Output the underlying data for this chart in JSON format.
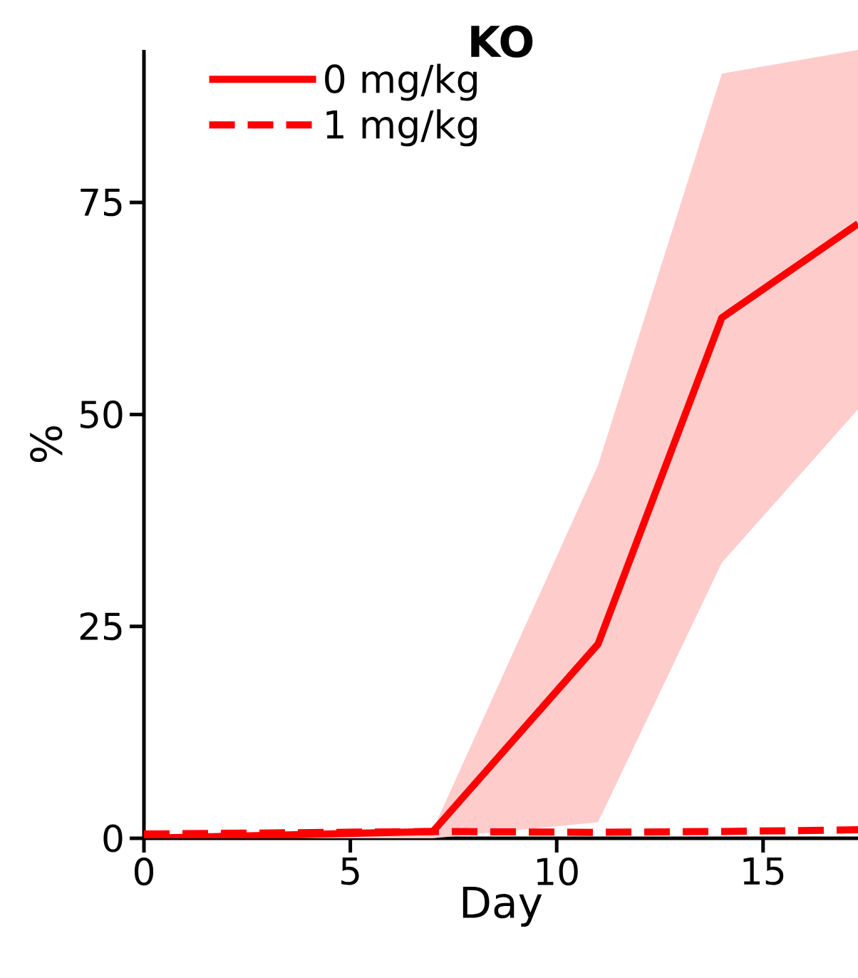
{
  "chart_data": {
    "type": "line",
    "title": "KO",
    "xlabel": "Day",
    "ylabel": "%",
    "xlim": [
      0,
      17.3
    ],
    "ylim": [
      0,
      93
    ],
    "xticks": [
      0,
      5,
      10,
      15
    ],
    "yticks": [
      0,
      25,
      50,
      75
    ],
    "grid": false,
    "legend": "top left",
    "series": [
      {
        "name": "0 mg/kg",
        "color": "#ff0000",
        "line_style": "solid",
        "x": [
          0,
          7,
          11,
          14,
          17.3
        ],
        "values": [
          0,
          0.8,
          22.9,
          61.4,
          72.5
        ],
        "lower": [
          0,
          0,
          1.9,
          32.5,
          50.6
        ],
        "upper": [
          0,
          1,
          44,
          90.2,
          93
        ]
      },
      {
        "name": "1 mg/kg",
        "color": "#ff0000",
        "line_style": "dashed",
        "x": [
          0,
          7,
          11,
          14,
          17.3
        ],
        "values": [
          0.5,
          0.8,
          0.7,
          0.8,
          1.0
        ]
      }
    ]
  }
}
